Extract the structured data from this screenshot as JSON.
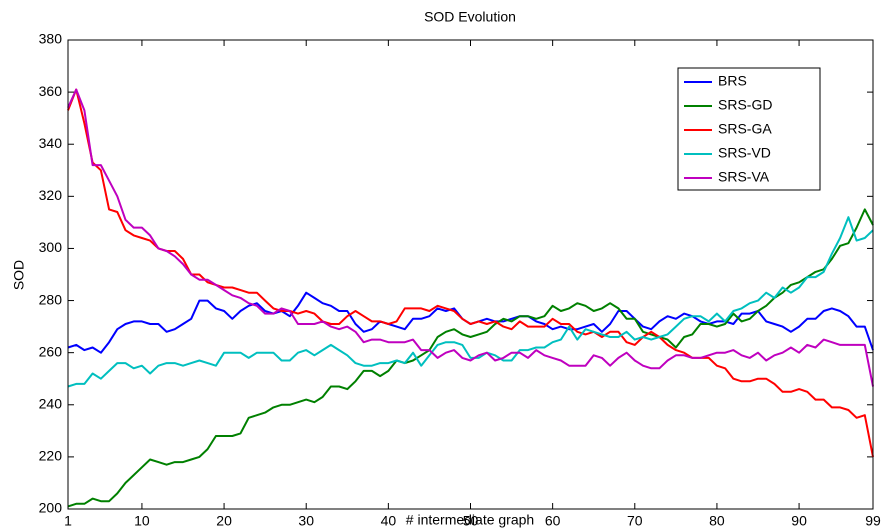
{
  "chart_data": {
    "type": "line",
    "title": "SOD Evolution",
    "x_label": "# intermediate graph",
    "y_label": "SOD",
    "x": [
      1,
      2,
      3,
      4,
      5,
      6,
      7,
      8,
      9,
      10,
      11,
      12,
      13,
      14,
      15,
      16,
      17,
      18,
      19,
      20,
      21,
      22,
      23,
      24,
      25,
      26,
      27,
      28,
      29,
      30,
      31,
      32,
      33,
      34,
      35,
      36,
      37,
      38,
      39,
      40,
      41,
      42,
      43,
      44,
      45,
      46,
      47,
      48,
      49,
      50,
      51,
      52,
      53,
      54,
      55,
      56,
      57,
      58,
      59,
      60,
      61,
      62,
      63,
      64,
      65,
      66,
      67,
      68,
      69,
      70,
      71,
      72,
      73,
      74,
      75,
      76,
      77,
      78,
      79,
      80,
      81,
      82,
      83,
      84,
      85,
      86,
      87,
      88,
      89,
      90,
      91,
      92,
      93,
      94,
      95,
      96,
      97,
      98,
      99
    ],
    "series": [
      {
        "name": "BRS",
        "color": "#0000ff",
        "values": [
          262,
          263,
          261,
          262,
          260,
          264,
          269,
          271,
          272,
          272,
          271,
          271,
          268,
          269,
          271,
          273,
          280,
          280,
          277,
          276,
          273,
          276,
          278,
          279,
          276,
          275,
          276,
          274,
          278,
          283,
          281,
          279,
          278,
          276,
          276,
          271,
          268,
          269,
          272,
          271,
          270,
          269,
          273,
          273,
          274,
          277,
          276,
          277,
          273,
          271,
          272,
          273,
          272,
          272,
          273,
          274,
          274,
          272,
          271,
          269,
          270,
          269,
          269,
          270,
          271,
          268,
          271,
          276,
          276,
          273,
          270,
          269,
          272,
          274,
          273,
          275,
          274,
          272,
          271,
          272,
          272,
          271,
          275,
          275,
          276,
          272,
          271,
          270,
          268,
          270,
          273,
          273,
          276,
          277,
          276,
          274,
          270,
          270,
          261
        ]
      },
      {
        "name": "SRS-GD",
        "color": "#008000",
        "values": [
          201,
          202,
          202,
          204,
          203,
          203,
          206,
          210,
          213,
          216,
          219,
          218,
          217,
          218,
          218,
          219,
          220,
          223,
          228,
          228,
          228,
          229,
          235,
          236,
          237,
          239,
          240,
          240,
          241,
          242,
          241,
          243,
          247,
          247,
          246,
          249,
          253,
          253,
          251,
          253,
          257,
          256,
          257,
          259,
          261,
          266,
          268,
          269,
          267,
          266,
          267,
          268,
          271,
          273,
          272,
          274,
          274,
          273,
          274,
          278,
          276,
          277,
          279,
          278,
          276,
          277,
          279,
          277,
          273,
          273,
          268,
          267,
          266,
          265,
          262,
          266,
          267,
          271,
          271,
          270,
          271,
          275,
          272,
          273,
          276,
          278,
          281,
          283,
          286,
          287,
          289,
          291,
          292,
          296,
          301,
          302,
          308,
          315,
          309
        ]
      },
      {
        "name": "SRS-GA",
        "color": "#ff0000",
        "values": [
          353,
          361,
          348,
          333,
          330,
          315,
          314,
          307,
          305,
          304,
          303,
          300,
          299,
          299,
          296,
          290,
          290,
          287,
          286,
          285,
          285,
          284,
          283,
          283,
          280,
          277,
          276,
          276,
          275,
          276,
          275,
          272,
          271,
          271,
          274,
          276,
          274,
          272,
          272,
          271,
          272,
          277,
          277,
          277,
          276,
          278,
          277,
          276,
          273,
          271,
          272,
          271,
          272,
          270,
          269,
          272,
          270,
          270,
          270,
          273,
          271,
          271,
          268,
          267,
          268,
          266,
          268,
          268,
          264,
          263,
          266,
          268,
          266,
          263,
          261,
          260,
          258,
          258,
          258,
          255,
          254,
          250,
          249,
          249,
          250,
          250,
          248,
          245,
          245,
          246,
          245,
          242,
          242,
          239,
          239,
          238,
          235,
          236,
          220
        ]
      },
      {
        "name": "SRS-VD",
        "color": "#00bfbf",
        "values": [
          247,
          248,
          248,
          252,
          250,
          253,
          256,
          256,
          254,
          255,
          252,
          255,
          256,
          256,
          255,
          256,
          257,
          256,
          255,
          260,
          260,
          260,
          258,
          260,
          260,
          260,
          257,
          257,
          260,
          261,
          259,
          261,
          263,
          261,
          259,
          256,
          255,
          255,
          256,
          256,
          257,
          256,
          260,
          255,
          259,
          263,
          264,
          264,
          263,
          258,
          258,
          260,
          259,
          257,
          257,
          261,
          261,
          262,
          262,
          264,
          265,
          270,
          265,
          269,
          268,
          267,
          266,
          266,
          268,
          265,
          266,
          265,
          266,
          267,
          270,
          273,
          274,
          274,
          272,
          275,
          272,
          276,
          277,
          279,
          280,
          283,
          281,
          285,
          283,
          285,
          289,
          289,
          291,
          298,
          304,
          312,
          303,
          304,
          307
        ]
      },
      {
        "name": "SRS-VA",
        "color": "#bf00bf",
        "values": [
          354,
          361,
          353,
          332,
          332,
          326,
          320,
          311,
          308,
          308,
          305,
          300,
          299,
          297,
          294,
          290,
          288,
          288,
          286,
          284,
          282,
          281,
          279,
          278,
          275,
          275,
          277,
          276,
          271,
          271,
          271,
          272,
          270,
          269,
          270,
          268,
          264,
          265,
          265,
          264,
          264,
          264,
          265,
          261,
          261,
          258,
          260,
          261,
          258,
          257,
          259,
          260,
          257,
          258,
          260,
          260,
          258,
          261,
          259,
          258,
          257,
          255,
          255,
          255,
          259,
          258,
          255,
          258,
          260,
          257,
          255,
          254,
          254,
          257,
          259,
          259,
          258,
          258,
          259,
          260,
          260,
          261,
          259,
          258,
          260,
          257,
          259,
          260,
          262,
          260,
          263,
          262,
          265,
          264,
          263,
          263,
          263,
          263,
          247
        ]
      }
    ],
    "xlim": [
      1,
      99
    ],
    "ylim": [
      200,
      380
    ],
    "xticks": [
      1,
      10,
      20,
      30,
      40,
      50,
      60,
      70,
      80,
      90,
      99
    ],
    "yticks": [
      200,
      220,
      240,
      260,
      280,
      300,
      320,
      340,
      360,
      380
    ],
    "legend": "upper right"
  }
}
